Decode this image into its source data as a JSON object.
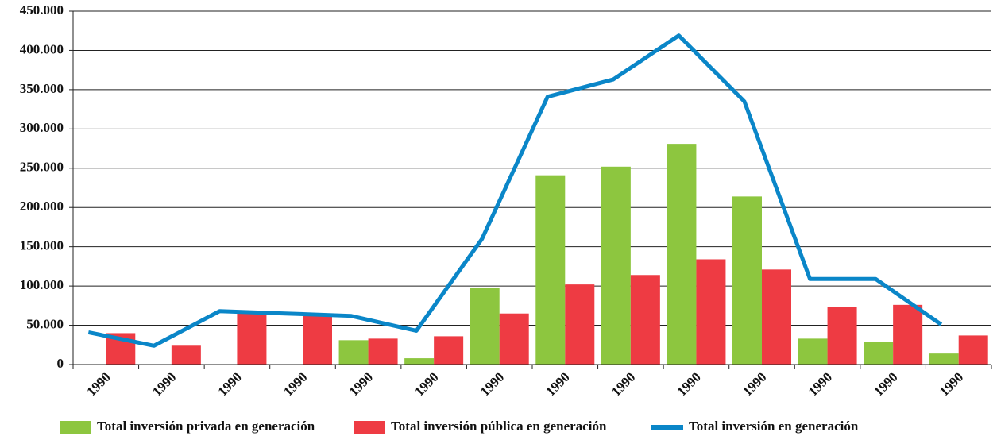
{
  "chart_data": {
    "type": "bar",
    "categories": [
      "1990",
      "1990",
      "1990",
      "1990",
      "1990",
      "1990",
      "1990",
      "1990",
      "1990",
      "1990",
      "1990",
      "1990",
      "1990",
      "1990"
    ],
    "series": [
      {
        "name": "Total inversión privada en generación",
        "color": "#8dc63f",
        "type": "bar",
        "values": [
          0,
          0,
          0,
          0,
          31000,
          8000,
          98000,
          241000,
          252000,
          281000,
          214000,
          33000,
          29000,
          14000
        ]
      },
      {
        "name": "Total inversión pública en generación",
        "color": "#ee3b43",
        "type": "bar",
        "values": [
          40000,
          24000,
          67000,
          64000,
          33000,
          36000,
          65000,
          102000,
          114000,
          134000,
          121000,
          73000,
          76000,
          37000
        ]
      },
      {
        "name": "Total inversión en generación",
        "color": "#0a86c8",
        "type": "line",
        "values": [
          41000,
          24000,
          68000,
          65000,
          62000,
          43000,
          160000,
          341000,
          363000,
          419000,
          335000,
          109000,
          109000,
          51000
        ]
      }
    ],
    "ylim": [
      0,
      450000
    ],
    "yticks": [
      0,
      {
        "value": 50000,
        "label": "50.000"
      },
      {
        "value": 100000,
        "label": "100.000"
      },
      {
        "value": 150000,
        "label": "150.000"
      },
      {
        "value": 200000,
        "label": "200.000"
      },
      {
        "value": 250000,
        "label": "250.000"
      },
      {
        "value": 300000,
        "label": "300.000"
      },
      {
        "value": 350000,
        "label": "350.000"
      },
      {
        "value": 400000,
        "label": "400.000"
      },
      {
        "value": 450000,
        "label": "450.000"
      }
    ],
    "grid": true,
    "legend": "bottom"
  }
}
